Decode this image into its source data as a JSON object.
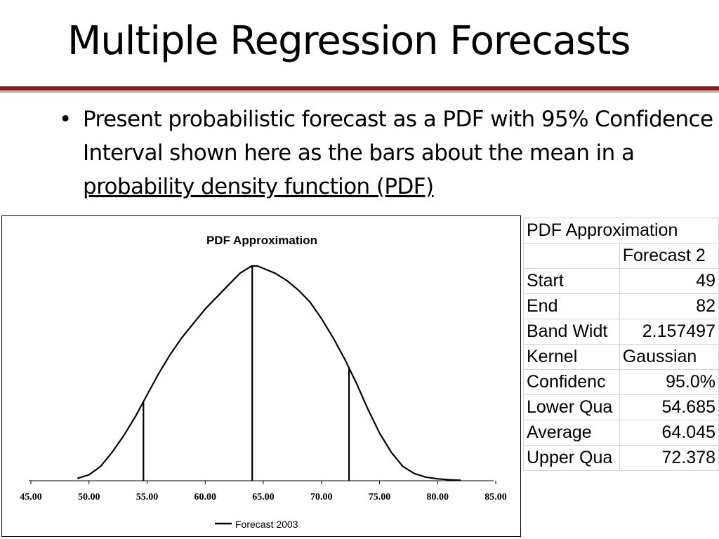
{
  "slide": {
    "title": "Multiple Regression Forecasts",
    "bullet_main": "Present probabilistic forecast as a PDF with 95% Confidence Interval shown here as the bars about the mean in a ",
    "bullet_link": "probability density function (PDF)",
    "bullet_glyph": "•",
    "rule_color": "#8a1c1c"
  },
  "chart_data": {
    "type": "line",
    "title": "PDF Approximation",
    "xlabel": "",
    "ylabel": "",
    "xlim": [
      45,
      85
    ],
    "ylim": [
      0,
      0.1
    ],
    "x_ticks": [
      "45.00",
      "50.00",
      "55.00",
      "60.00",
      "65.00",
      "70.00",
      "75.00",
      "80.00",
      "85.00"
    ],
    "grid": false,
    "legend": {
      "position": "bottom",
      "entries": [
        "Forecast 2003"
      ]
    },
    "series": [
      {
        "name": "Forecast 2003",
        "color": "#000000",
        "x": [
          49,
          50,
          51,
          52,
          53,
          54,
          55,
          56,
          57,
          58,
          59,
          60,
          61,
          62,
          63,
          64,
          64.5,
          65,
          66,
          67,
          68,
          69,
          70,
          71,
          72,
          73,
          74,
          75,
          76,
          77,
          78,
          79,
          80,
          81,
          82
        ],
        "y": [
          0.001,
          0.0025,
          0.006,
          0.012,
          0.019,
          0.027,
          0.036,
          0.045,
          0.053,
          0.06,
          0.066,
          0.072,
          0.077,
          0.082,
          0.087,
          0.09,
          0.09,
          0.089,
          0.087,
          0.084,
          0.08,
          0.075,
          0.068,
          0.06,
          0.051,
          0.041,
          0.03,
          0.02,
          0.012,
          0.006,
          0.003,
          0.0015,
          0.0008,
          0.0004,
          0.0002
        ]
      }
    ],
    "vertical_bars": [
      {
        "label": "Lower Quantile",
        "x": 54.685,
        "y": 0.033
      },
      {
        "label": "Average",
        "x": 64.045,
        "y": 0.09
      },
      {
        "label": "Upper Quantile",
        "x": 72.378,
        "y": 0.047
      }
    ]
  },
  "table": {
    "title": "PDF Approximation",
    "column_header": "Forecast 2",
    "rows": [
      {
        "label": "Start",
        "value": "49"
      },
      {
        "label": "End",
        "value": "82"
      },
      {
        "label": "Band Widt",
        "value": "2.157497"
      },
      {
        "label": "Kernel",
        "value": "Gaussian",
        "align": "left"
      },
      {
        "label": "Confidenc",
        "value": "95.0%"
      },
      {
        "label": "Lower Qua",
        "value": "54.685"
      },
      {
        "label": "Average",
        "value": "64.045"
      },
      {
        "label": "Upper Qua",
        "value": "72.378"
      }
    ]
  }
}
